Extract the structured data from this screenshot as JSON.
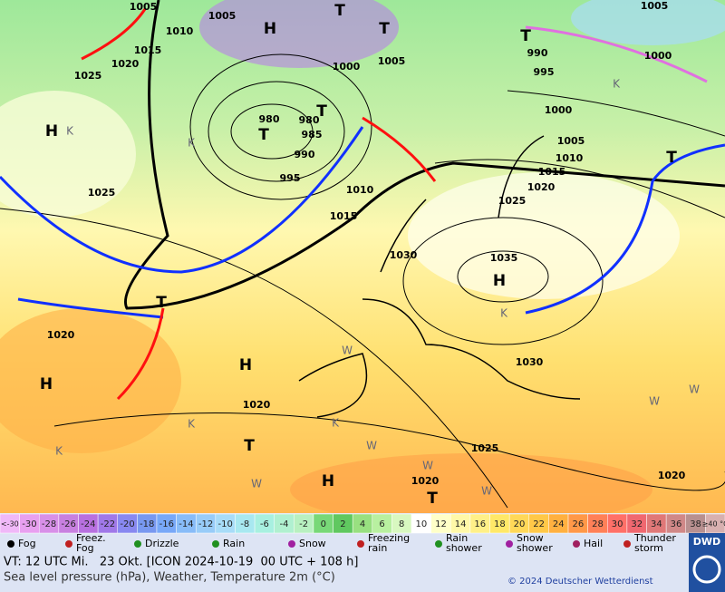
{
  "map": {
    "pressure_labels": [
      "1005",
      "1010",
      "1015",
      "1020",
      "1025",
      "1005",
      "1005",
      "1000",
      "980",
      "980",
      "985",
      "990",
      "995",
      "1010",
      "1015",
      "990",
      "995",
      "1000",
      "1005",
      "1010",
      "1015",
      "1020",
      "1025",
      "1030",
      "1035",
      "1030",
      "1020",
      "1020",
      "1025",
      "1025",
      "1020",
      "1020",
      "1005",
      "1000"
    ],
    "high_labels": [
      "H",
      "H",
      "H",
      "H",
      "H",
      "H"
    ],
    "low_labels": [
      "T",
      "T",
      "T",
      "T",
      "T",
      "T",
      "T",
      "T",
      "T"
    ],
    "cold_labels": [
      "K",
      "K",
      "K",
      "K",
      "K",
      "K",
      "K"
    ],
    "warm_labels": [
      "W",
      "W",
      "W",
      "W",
      "W",
      "W",
      "W"
    ]
  },
  "scale": {
    "items": [
      {
        "label": "<-30",
        "color": "#f0b8f8"
      },
      {
        "label": "-30",
        "color": "#e8a0f0"
      },
      {
        "label": "-28",
        "color": "#d890e8"
      },
      {
        "label": "-26",
        "color": "#c880e0"
      },
      {
        "label": "-24",
        "color": "#b870e0"
      },
      {
        "label": "-22",
        "color": "#a078e8"
      },
      {
        "label": "-20",
        "color": "#8888f0"
      },
      {
        "label": "-18",
        "color": "#7898f0"
      },
      {
        "label": "-16",
        "color": "#78a8f8"
      },
      {
        "label": "-14",
        "color": "#88bcf8"
      },
      {
        "label": "-12",
        "color": "#98ccf8"
      },
      {
        "label": "-10",
        "color": "#a8dcf8"
      },
      {
        "label": "-8",
        "color": "#a8e8f0"
      },
      {
        "label": "-6",
        "color": "#a8f0e0"
      },
      {
        "label": "-4",
        "color": "#b0f0d0"
      },
      {
        "label": "-2",
        "color": "#b8f0c0"
      },
      {
        "label": "0",
        "color": "#78d878"
      },
      {
        "label": "2",
        "color": "#60c860"
      },
      {
        "label": "4",
        "color": "#98e080"
      },
      {
        "label": "6",
        "color": "#b8f0a0"
      },
      {
        "label": "8",
        "color": "#d8f8c0"
      },
      {
        "label": "10",
        "color": "#ffffff"
      },
      {
        "label": "12",
        "color": "#ffffc8"
      },
      {
        "label": "14",
        "color": "#fff8a8"
      },
      {
        "label": "16",
        "color": "#fff088"
      },
      {
        "label": "18",
        "color": "#ffe868"
      },
      {
        "label": "20",
        "color": "#ffd858"
      },
      {
        "label": "22",
        "color": "#ffc848"
      },
      {
        "label": "24",
        "color": "#ffb040"
      },
      {
        "label": "26",
        "color": "#ff9848"
      },
      {
        "label": "28",
        "color": "#ff8058"
      },
      {
        "label": "30",
        "color": "#ff7068"
      },
      {
        "label": "32",
        "color": "#f06870"
      },
      {
        "label": "34",
        "color": "#e07878"
      },
      {
        "label": "36",
        "color": "#d08888"
      },
      {
        "label": "38",
        "color": "#b89090"
      },
      {
        "label": "≥40 °C",
        "color": "#d8b0b0"
      }
    ]
  },
  "legend": {
    "items": [
      {
        "lines": [
          "Fog"
        ]
      },
      {
        "lines": [
          "Freez.",
          "Fog"
        ]
      },
      {
        "lines": [
          "Drizzle"
        ]
      },
      {
        "lines": [
          "Rain"
        ]
      },
      {
        "lines": [
          "Snow"
        ]
      },
      {
        "lines": [
          "Freezing",
          "rain"
        ]
      },
      {
        "lines": [
          "Rain",
          "shower"
        ]
      },
      {
        "lines": [
          "Snow",
          "shower"
        ]
      },
      {
        "lines": [
          "Hail"
        ]
      },
      {
        "lines": [
          "Thunder",
          "storm"
        ]
      }
    ]
  },
  "footer": {
    "valid_time": "VT: 12 UTC Mi.   23 Okt. [ICON 2024-10-19  00 UTC + 108 h]",
    "description": "Sea level pressure (hPa), Weather, Temperature 2m (°C)",
    "copyright": "© 2024 Deutscher Wetterdienst",
    "logo": "DWD"
  }
}
